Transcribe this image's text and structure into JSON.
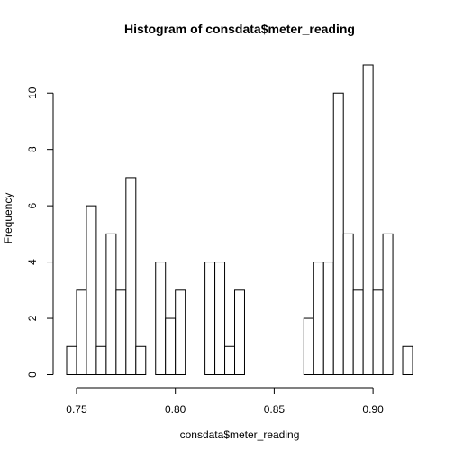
{
  "chart_data": {
    "type": "bar",
    "title": "Histogram of consdata$meter_reading",
    "xlabel": "consdata$meter_reading",
    "ylabel": "Frequency",
    "bin_width": 0.005,
    "bins_start": [
      0.745,
      0.75,
      0.755,
      0.76,
      0.765,
      0.77,
      0.775,
      0.78,
      0.785,
      0.79,
      0.795,
      0.8,
      0.805,
      0.81,
      0.815,
      0.82,
      0.825,
      0.83,
      0.835,
      0.84,
      0.845,
      0.85,
      0.855,
      0.86,
      0.865,
      0.87,
      0.875,
      0.88,
      0.885,
      0.89,
      0.895,
      0.9,
      0.905,
      0.91,
      0.915
    ],
    "values": [
      1,
      3,
      6,
      1,
      5,
      3,
      7,
      1,
      0,
      4,
      2,
      3,
      0,
      0,
      4,
      4,
      1,
      3,
      0,
      0,
      0,
      0,
      0,
      0,
      2,
      4,
      4,
      10,
      5,
      3,
      11,
      3,
      5,
      0,
      1
    ],
    "xlim": [
      0.745,
      0.92
    ],
    "ylim": [
      0,
      11
    ],
    "x_ticks": [
      0.75,
      0.8,
      0.85,
      0.9
    ],
    "x_tick_labels": [
      "0.75",
      "0.80",
      "0.85",
      "0.90"
    ],
    "y_ticks": [
      0,
      2,
      4,
      6,
      8,
      10
    ],
    "y_tick_labels": [
      "0",
      "2",
      "4",
      "6",
      "8",
      "10"
    ],
    "grid": false,
    "colors": {
      "bar_fill": "#ffffff",
      "bar_stroke": "#000000"
    }
  }
}
